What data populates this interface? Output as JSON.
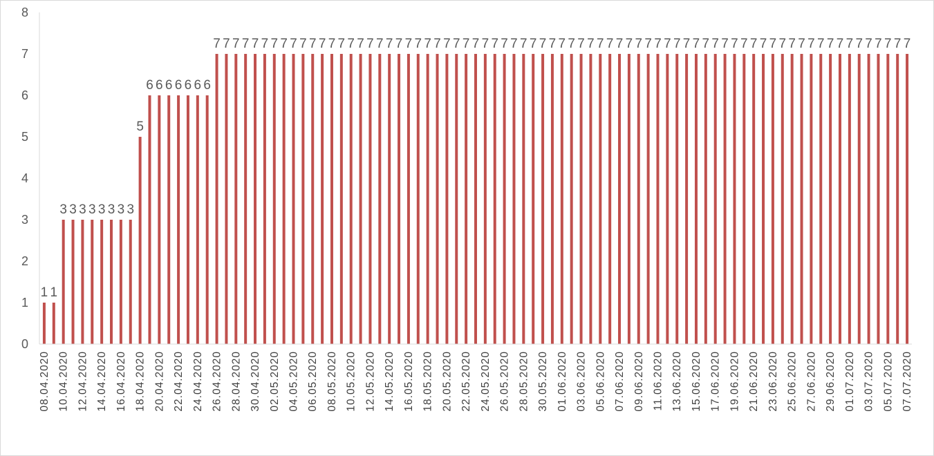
{
  "chart_data": {
    "type": "bar",
    "title": "",
    "xlabel": "",
    "ylabel": "",
    "ylim": [
      0,
      8
    ],
    "yticks": [
      0,
      1,
      2,
      3,
      4,
      5,
      6,
      7,
      8
    ],
    "grid": false,
    "legend": "none",
    "bar_color": "#c0504d",
    "categories": [
      "08.04.2020",
      "09.04.2020",
      "10.04.2020",
      "11.04.2020",
      "12.04.2020",
      "13.04.2020",
      "14.04.2020",
      "15.04.2020",
      "16.04.2020",
      "17.04.2020",
      "18.04.2020",
      "19.04.2020",
      "20.04.2020",
      "21.04.2020",
      "22.04.2020",
      "23.04.2020",
      "24.04.2020",
      "25.04.2020",
      "26.04.2020",
      "27.04.2020",
      "28.04.2020",
      "29.04.2020",
      "30.04.2020",
      "01.05.2020",
      "02.05.2020",
      "03.05.2020",
      "04.05.2020",
      "05.05.2020",
      "06.05.2020",
      "07.05.2020",
      "08.05.2020",
      "09.05.2020",
      "10.05.2020",
      "11.05.2020",
      "12.05.2020",
      "13.05.2020",
      "14.05.2020",
      "15.05.2020",
      "16.05.2020",
      "17.05.2020",
      "18.05.2020",
      "19.05.2020",
      "20.05.2020",
      "21.05.2020",
      "22.05.2020",
      "23.05.2020",
      "24.05.2020",
      "25.05.2020",
      "26.05.2020",
      "27.05.2020",
      "28.05.2020",
      "29.05.2020",
      "30.05.2020",
      "31.05.2020",
      "01.06.2020",
      "02.06.2020",
      "03.06.2020",
      "04.06.2020",
      "05.06.2020",
      "06.06.2020",
      "07.06.2020",
      "08.06.2020",
      "09.06.2020",
      "10.06.2020",
      "11.06.2020",
      "12.06.2020",
      "13.06.2020",
      "14.06.2020",
      "15.06.2020",
      "16.06.2020",
      "17.06.2020",
      "18.06.2020",
      "19.06.2020",
      "20.06.2020",
      "21.06.2020",
      "22.06.2020",
      "23.06.2020",
      "24.06.2020",
      "25.06.2020",
      "26.06.2020",
      "27.06.2020",
      "28.06.2020",
      "29.06.2020",
      "30.06.2020",
      "01.07.2020",
      "02.07.2020",
      "03.07.2020",
      "04.07.2020",
      "05.07.2020",
      "06.07.2020",
      "07.07.2020"
    ],
    "shown_tick_labels": [
      "08.04.2020",
      "10.04.2020",
      "12.04.2020",
      "14.04.2020",
      "16.04.2020",
      "18.04.2020",
      "20.04.2020",
      "22.04.2020",
      "24.04.2020",
      "26.04.2020",
      "28.04.2020",
      "30.04.2020",
      "02.05.2020",
      "04.05.2020",
      "06.05.2020",
      "08.05.2020",
      "10.05.2020",
      "12.05.2020",
      "14.05.2020",
      "16.05.2020",
      "18.05.2020",
      "20.05.2020",
      "22.05.2020",
      "24.05.2020",
      "26.05.2020",
      "28.05.2020",
      "30.05.2020",
      "01.06.2020",
      "03.06.2020",
      "05.06.2020",
      "07.06.2020",
      "09.06.2020",
      "11.06.2020",
      "13.06.2020",
      "15.06.2020",
      "17.06.2020",
      "19.06.2020",
      "21.06.2020",
      "23.06.2020",
      "25.06.2020",
      "27.06.2020",
      "29.06.2020",
      "01.07.2020",
      "03.07.2020",
      "05.07.2020",
      "07.07.2020"
    ],
    "values": [
      1,
      1,
      3,
      3,
      3,
      3,
      3,
      3,
      3,
      3,
      5,
      6,
      6,
      6,
      6,
      6,
      6,
      6,
      7,
      7,
      7,
      7,
      7,
      7,
      7,
      7,
      7,
      7,
      7,
      7,
      7,
      7,
      7,
      7,
      7,
      7,
      7,
      7,
      7,
      7,
      7,
      7,
      7,
      7,
      7,
      7,
      7,
      7,
      7,
      7,
      7,
      7,
      7,
      7,
      7,
      7,
      7,
      7,
      7,
      7,
      7,
      7,
      7,
      7,
      7,
      7,
      7,
      7,
      7,
      7,
      7,
      7,
      7,
      7,
      7,
      7,
      7,
      7,
      7,
      7,
      7,
      7,
      7,
      7,
      7,
      7,
      7,
      7,
      7,
      7,
      7
    ],
    "data_labels": true
  }
}
